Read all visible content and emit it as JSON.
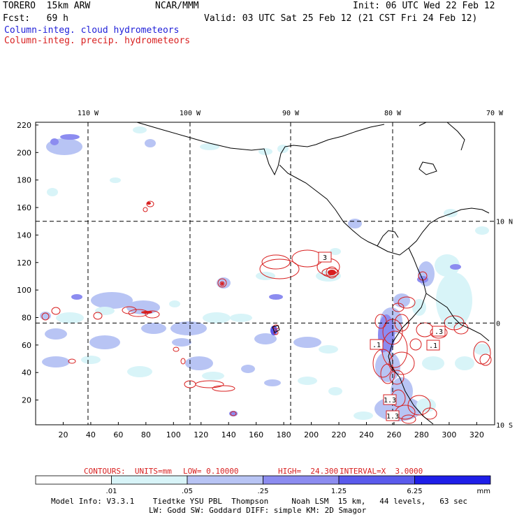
{
  "header": {
    "model": "TORERO  15km ARW",
    "center": "NCAR/MMM",
    "init": "Init: 06 UTC Wed 22 Feb 12",
    "fcst": "Fcst:   69 h",
    "valid": "Valid: 03 UTC Sat 25 Feb 12 (21 CST Fri 24 Feb 12)",
    "field1": "Column-integ. cloud hydrometeors",
    "field2": "Column-integ. precip. hydrometeors"
  },
  "colors": {
    "cloud_blue": "#1f1fd8",
    "precip_red": "#d81f1f",
    "contour": "#d81f1f",
    "coast": "#000000"
  },
  "chart_data": {
    "type": "heatmap",
    "grid": true,
    "x_ticks": [
      20,
      40,
      60,
      80,
      100,
      120,
      140,
      160,
      180,
      200,
      220,
      240,
      260,
      280,
      300,
      320
    ],
    "y_ticks": [
      20,
      40,
      60,
      80,
      100,
      120,
      140,
      160,
      180,
      200,
      220
    ],
    "xlim": [
      0,
      333
    ],
    "ylim": [
      2,
      222
    ],
    "lon_labels": [
      "110 W",
      "100 W",
      "90 W",
      "80 W",
      "70 W"
    ],
    "lon_positions": [
      38,
      112,
      185,
      259,
      333
    ],
    "lat_labels": [
      "10 N",
      "0",
      "10 S"
    ],
    "lat_positions": [
      150,
      76,
      2
    ],
    "contour_labels": [
      "3",
      ".1",
      ".1",
      ".3",
      "1.3",
      "1.3"
    ],
    "legend_ticks": [
      ".01",
      ".05",
      ".25",
      "1.25",
      "6.25"
    ],
    "legend_unit": "mm",
    "legend_colors": [
      "#ffffff",
      "#d8f4f8",
      "#b8c4f4",
      "#8c8cf0",
      "#5a5aec",
      "#1e1ee8"
    ],
    "contour_info": {
      "label": "CONTOURS:  UNITS=mm",
      "low": "LOW= 0.10000",
      "high": "HIGH=  24.300",
      "interval": "INTERVAL=X  3.0000"
    }
  },
  "footer": {
    "line1": "Model Info: V3.3.1    Tiedtke YSU PBL  Thompson     Noah LSM  15 km,   44 levels,   63 sec",
    "line2": "LW: Godd SW: Goddard DIFF: simple KM: 2D Smagor"
  }
}
